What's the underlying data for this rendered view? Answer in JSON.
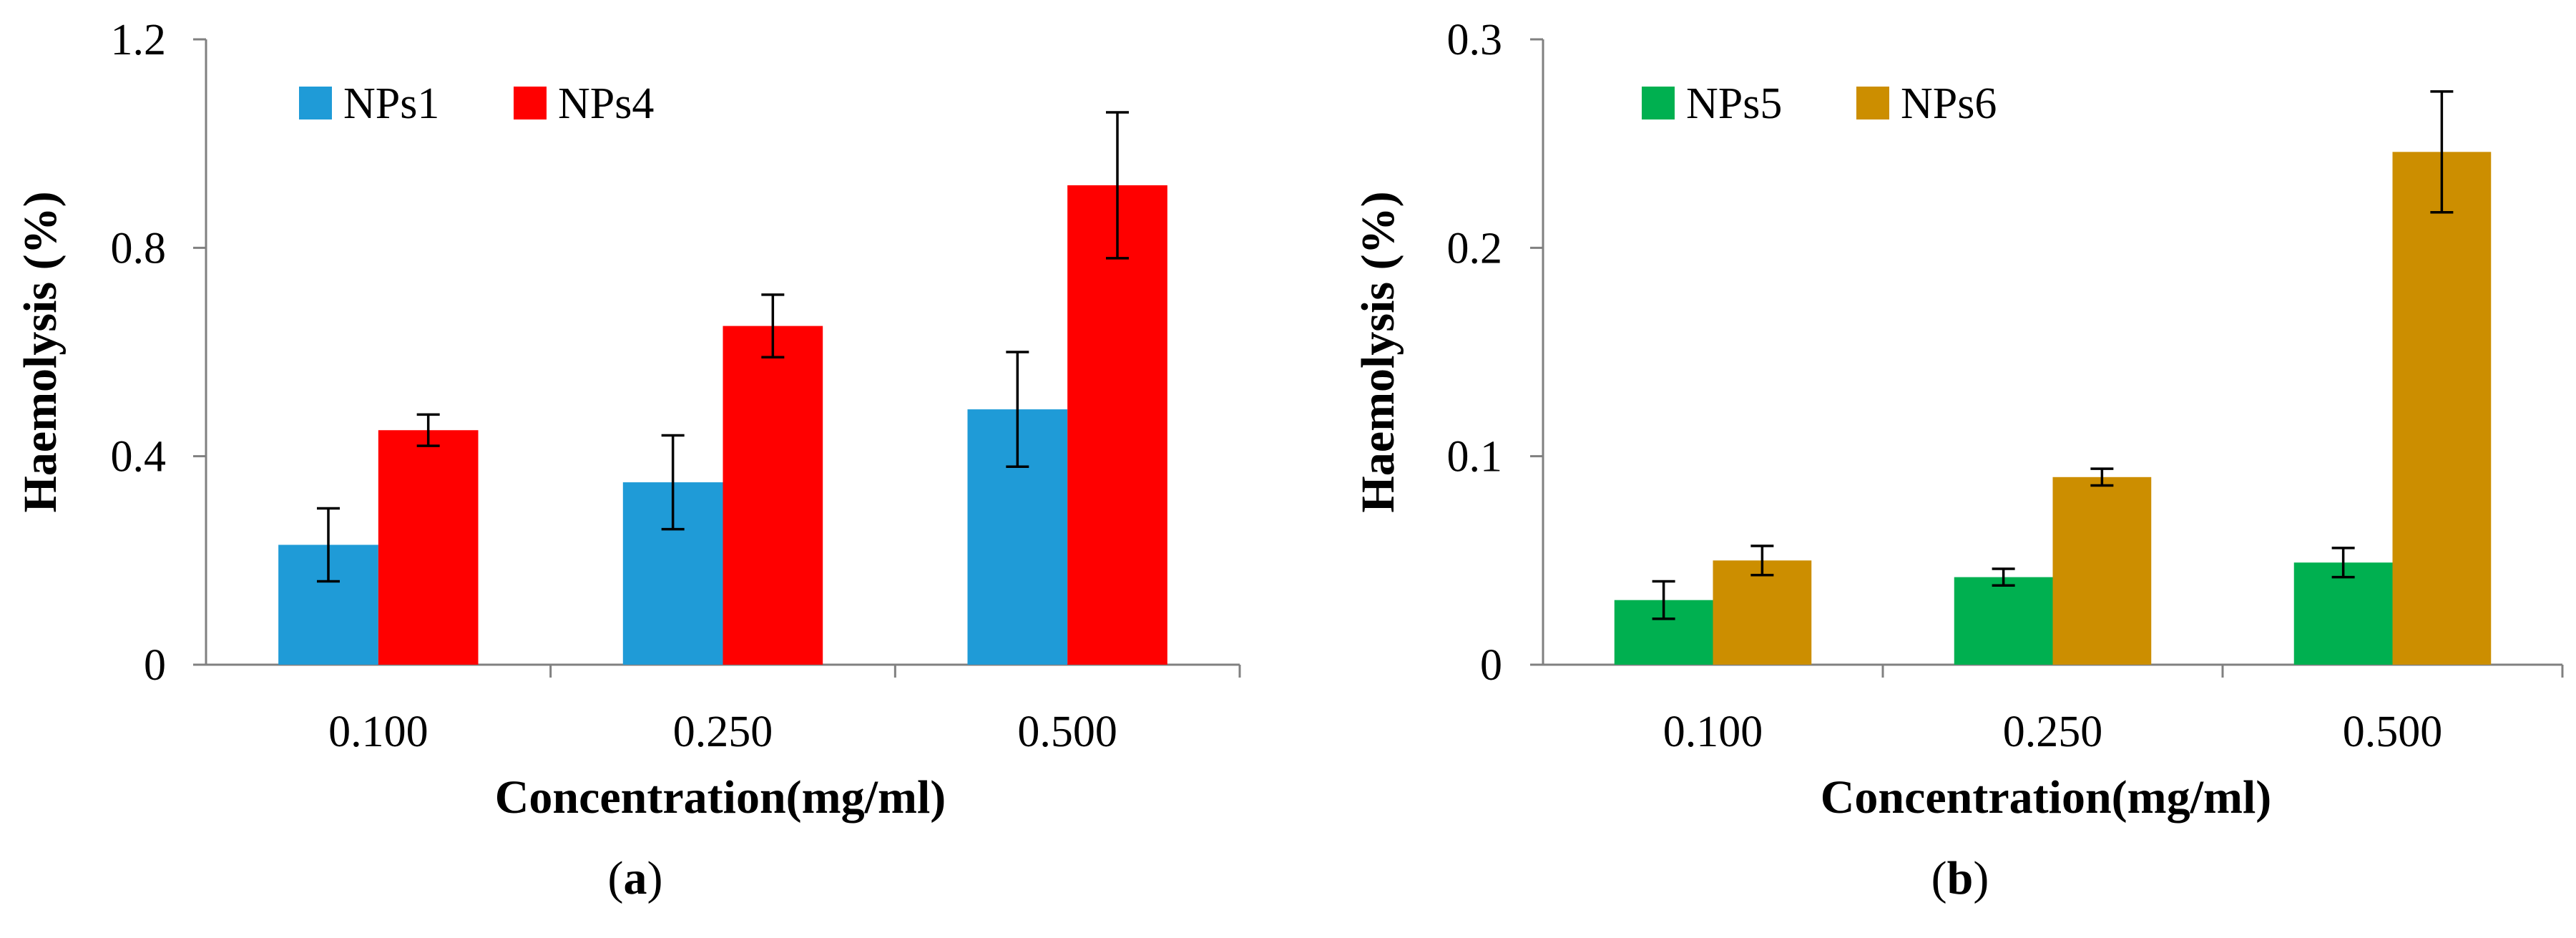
{
  "chart_data": [
    {
      "panel": "a",
      "type": "bar",
      "categories": [
        "0.100",
        "0.250",
        "0.500"
      ],
      "series": [
        {
          "name": "NPs1",
          "color": "#1f9bd7",
          "values": [
            0.23,
            0.35,
            0.49
          ],
          "errors": [
            0.07,
            0.09,
            0.11
          ]
        },
        {
          "name": "NPs4",
          "color": "#ff0000",
          "values": [
            0.45,
            0.65,
            0.92
          ],
          "errors": [
            0.03,
            0.06,
            0.14
          ]
        }
      ],
      "xlabel": "Concentration(mg/ml)",
      "ylabel": "Haemolysis (%)",
      "ylim": [
        0,
        1.2
      ],
      "yticks": [
        "0",
        "0.4",
        "0.8",
        "1.2"
      ],
      "ytick_values": [
        0,
        0.4,
        0.8,
        1.2
      ],
      "legend_position": "top-left",
      "grid": false,
      "label_open": "(",
      "label_letter": "a",
      "label_close": ")"
    },
    {
      "panel": "b",
      "type": "bar",
      "categories": [
        "0.100",
        "0.250",
        "0.500"
      ],
      "series": [
        {
          "name": "NPs5",
          "color": "#00b050",
          "values": [
            0.031,
            0.042,
            0.049
          ],
          "errors": [
            0.009,
            0.004,
            0.007
          ]
        },
        {
          "name": "NPs6",
          "color": "#cc8e00",
          "values": [
            0.05,
            0.09,
            0.246
          ],
          "errors": [
            0.007,
            0.004,
            0.029
          ]
        }
      ],
      "xlabel": "Concentration(mg/ml)",
      "ylabel": "Haemolysis (%)",
      "ylim": [
        0,
        0.3
      ],
      "yticks": [
        "0",
        "0.1",
        "0.2",
        "0.3"
      ],
      "ytick_values": [
        0,
        0.1,
        0.2,
        0.3
      ],
      "legend_position": "top-left",
      "grid": false,
      "label_open": "(",
      "label_letter": "b",
      "label_close": ")"
    }
  ]
}
